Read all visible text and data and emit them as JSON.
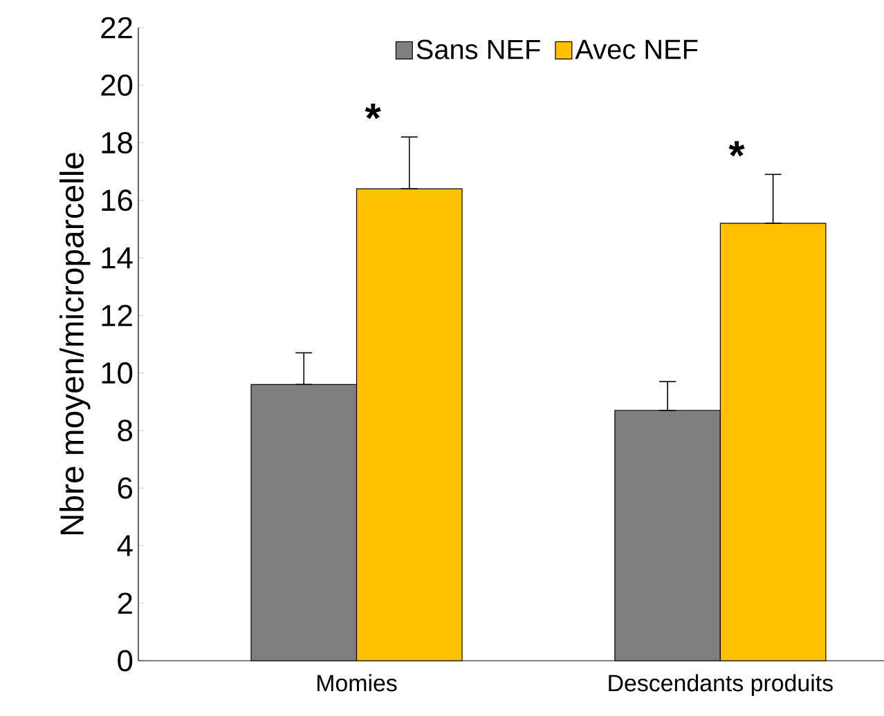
{
  "chart_data": {
    "type": "bar",
    "ylabel": "Nbre moyen/microparcelle",
    "categories": [
      "Momies",
      "Descendants produits"
    ],
    "series": [
      {
        "name": "Sans NEF",
        "color": "#7f7f7f",
        "values": [
          9.6,
          8.7
        ],
        "errors": [
          [
            9.6,
            10.7
          ],
          [
            8.7,
            9.7
          ]
        ]
      },
      {
        "name": "Avec NEF",
        "color": "#ffc000",
        "values": [
          16.4,
          15.2
        ],
        "errors": [
          [
            16.4,
            18.2
          ],
          [
            15.2,
            16.9
          ]
        ]
      }
    ],
    "ylim": [
      0,
      22
    ],
    "yticks": [
      0,
      2,
      4,
      6,
      8,
      10,
      12,
      14,
      16,
      18,
      20,
      22
    ],
    "legend": "top",
    "grid": false,
    "annotations": [
      "*",
      "*"
    ]
  }
}
